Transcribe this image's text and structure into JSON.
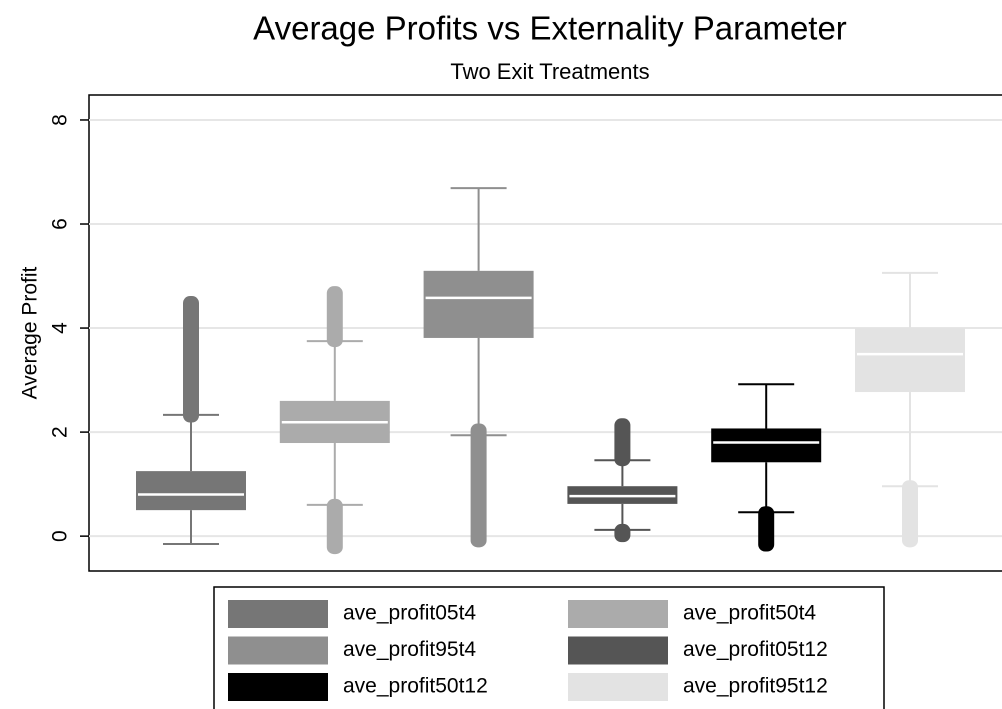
{
  "chart_data": {
    "type": "box",
    "title": "Average Profits vs Externality Parameter",
    "subtitle": "Two Exit Treatments",
    "y_label": "Average Profit",
    "ylim": [
      -0.67,
      8.48
    ],
    "yticks": [
      0,
      2,
      4,
      6,
      8
    ],
    "grid": true,
    "legend": "bottom",
    "series": [
      {
        "name": "ave_profit05t4",
        "color": "#767676",
        "whisker_low": -0.15,
        "q1": 0.5,
        "median": 0.8,
        "q3": 1.25,
        "whisker_high": 2.33,
        "outlier_ranges": [
          [
            2.3,
            4.5
          ]
        ]
      },
      {
        "name": "ave_profit50t4",
        "color": "#ababab",
        "whisker_low": 0.6,
        "q1": 1.79,
        "median": 2.19,
        "q3": 2.6,
        "whisker_high": 3.75,
        "outlier_ranges": [
          [
            3.75,
            4.69
          ],
          [
            -0.23,
            0.6
          ]
        ]
      },
      {
        "name": "ave_profit95t4",
        "color": "#8f8f8f",
        "whisker_low": 1.94,
        "q1": 3.81,
        "median": 4.58,
        "q3": 5.1,
        "whisker_high": 6.69,
        "outlier_ranges": [
          [
            -0.1,
            2.05
          ]
        ]
      },
      {
        "name": "ave_profit05t12",
        "color": "#555555",
        "whisker_low": 0.12,
        "q1": 0.62,
        "median": 0.77,
        "q3": 0.96,
        "whisker_high": 1.46,
        "outlier_ranges": [
          [
            1.46,
            2.15
          ],
          [
            0,
            0.12
          ]
        ]
      },
      {
        "name": "ave_profit50t12",
        "color": "#000000",
        "whisker_low": 0.46,
        "q1": 1.42,
        "median": 1.8,
        "q3": 2.07,
        "whisker_high": 2.92,
        "outlier_ranges": [
          [
            -0.18,
            0.46
          ]
        ]
      },
      {
        "name": "ave_profit95t12",
        "color": "#e3e3e3",
        "whisker_low": 0.96,
        "q1": 2.77,
        "median": 3.5,
        "q3": 4.0,
        "whisker_high": 5.06,
        "outlier_ranges": [
          [
            -0.1,
            0.96
          ]
        ]
      }
    ]
  }
}
